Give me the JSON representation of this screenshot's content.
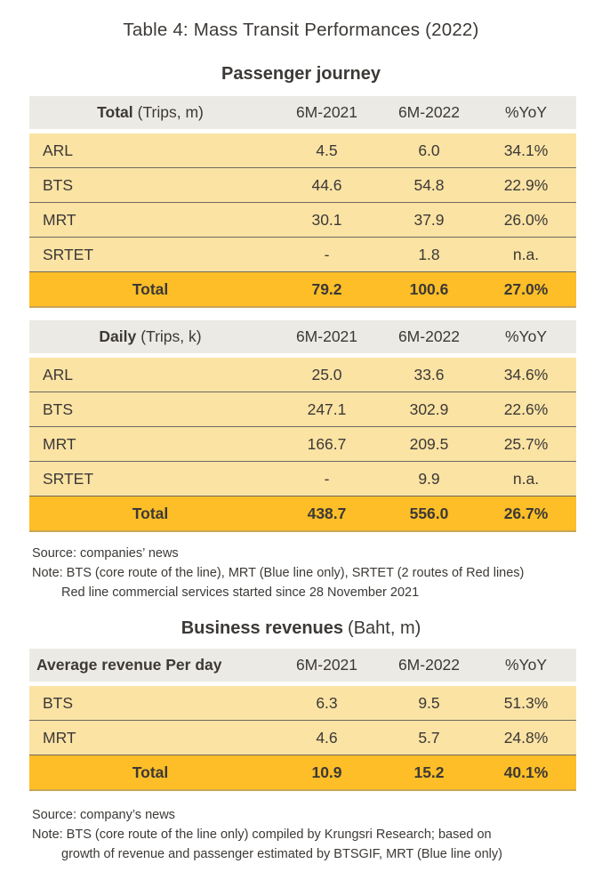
{
  "title": "Table 4: Mass Transit Performances (2022)",
  "colors": {
    "header_bg": "#ECEAE4",
    "row_bg": "#FBE3A4",
    "total_row_bg": "#FDBE27",
    "text": "#3C3936",
    "row_line": "#6E6960"
  },
  "columns": {
    "c2021": "6M-2021",
    "c2022": "6M-2022",
    "yoy": "%YoY"
  },
  "passenger": {
    "section_title": "Passenger journey",
    "total_table": {
      "label_bold": "Total",
      "label_unit": "(Trips, m)",
      "rows": [
        {
          "label": "ARL",
          "v2021": "4.5",
          "v2022": "6.0",
          "yoy": "34.1%"
        },
        {
          "label": "BTS",
          "v2021": "44.6",
          "v2022": "54.8",
          "yoy": "22.9%"
        },
        {
          "label": "MRT",
          "v2021": "30.1",
          "v2022": "37.9",
          "yoy": "26.0%"
        },
        {
          "label": "SRTET",
          "v2021": "-",
          "v2022": "1.8",
          "yoy": "n.a."
        }
      ],
      "total": {
        "label": "Total",
        "v2021": "79.2",
        "v2022": "100.6",
        "yoy": "27.0%"
      }
    },
    "daily_table": {
      "label_bold": "Daily",
      "label_unit": "(Trips, k)",
      "rows": [
        {
          "label": "ARL",
          "v2021": "25.0",
          "v2022": "33.6",
          "yoy": "34.6%"
        },
        {
          "label": "BTS",
          "v2021": "247.1",
          "v2022": "302.9",
          "yoy": "22.6%"
        },
        {
          "label": "MRT",
          "v2021": "166.7",
          "v2022": "209.5",
          "yoy": "25.7%"
        },
        {
          "label": "SRTET",
          "v2021": "-",
          "v2022": "9.9",
          "yoy": "n.a."
        }
      ],
      "total": {
        "label": "Total",
        "v2021": "438.7",
        "v2022": "556.0",
        "yoy": "26.7%"
      }
    },
    "notes": {
      "source": "Source: companies’ news",
      "note1": "Note: BTS (core route of the line), MRT (Blue line only), SRTET (2 routes of Red lines)",
      "note2": "Red line commercial services started since 28 November 2021"
    }
  },
  "revenues": {
    "section_title_bold": "Business revenues",
    "section_title_unit": "(Baht, m)",
    "table": {
      "label": "Average revenue Per day",
      "rows": [
        {
          "label": "BTS",
          "v2021": "6.3",
          "v2022": "9.5",
          "yoy": "51.3%"
        },
        {
          "label": "MRT",
          "v2021": "4.6",
          "v2022": "5.7",
          "yoy": "24.8%"
        }
      ],
      "total": {
        "label": "Total",
        "v2021": "10.9",
        "v2022": "15.2",
        "yoy": "40.1%"
      }
    },
    "notes": {
      "source": "Source: company’s news",
      "note1": "Note: BTS (core route of the line only) compiled by Krungsri Research; based on",
      "note2": "growth of revenue and passenger estimated by BTSGIF, MRT (Blue line only)"
    }
  }
}
